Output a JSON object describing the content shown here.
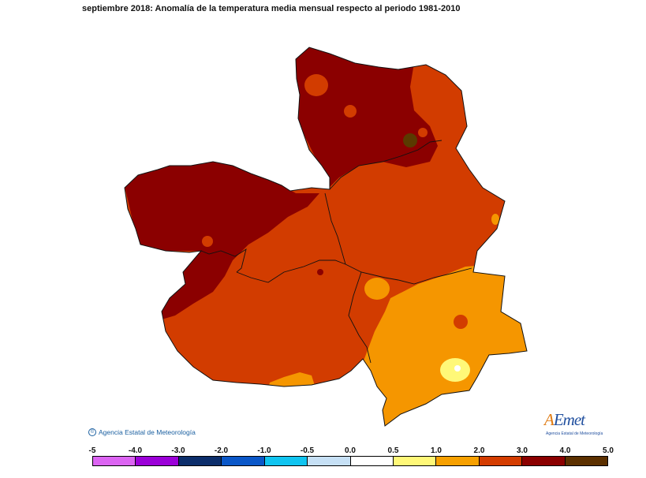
{
  "title": "septiembre 2018: Anomalía de la temperatura media mensual respecto al periodo 1981-2010",
  "credit": "Agencia Estatal de Meteorología",
  "logo": {
    "name": "AEmet",
    "subtitle": "Agencia Estatal de Meteorología"
  },
  "legend": {
    "ticks": [
      "-5",
      "-4.0",
      "-3.0",
      "-2.0",
      "-1.0",
      "-0.5",
      "0.0",
      "0.5",
      "1.0",
      "2.0",
      "3.0",
      "4.0",
      "5.0"
    ],
    "colors": [
      "#dc64f2",
      "#9b00d8",
      "#0c2e6b",
      "#0a57c8",
      "#10c4f0",
      "#c6e0f5",
      "#ffffff",
      "#fff878",
      "#f7a000",
      "#d43c00",
      "#8b0000",
      "#5c3000"
    ]
  },
  "map_colors": {
    "class_1_2": "#f59600",
    "class_2_3": "#d23c00",
    "class_3_4": "#8b0000",
    "class_4_5": "#5a3a00",
    "class_0_5_1": "#fff878",
    "class_0_0_5": "#ffffff"
  }
}
